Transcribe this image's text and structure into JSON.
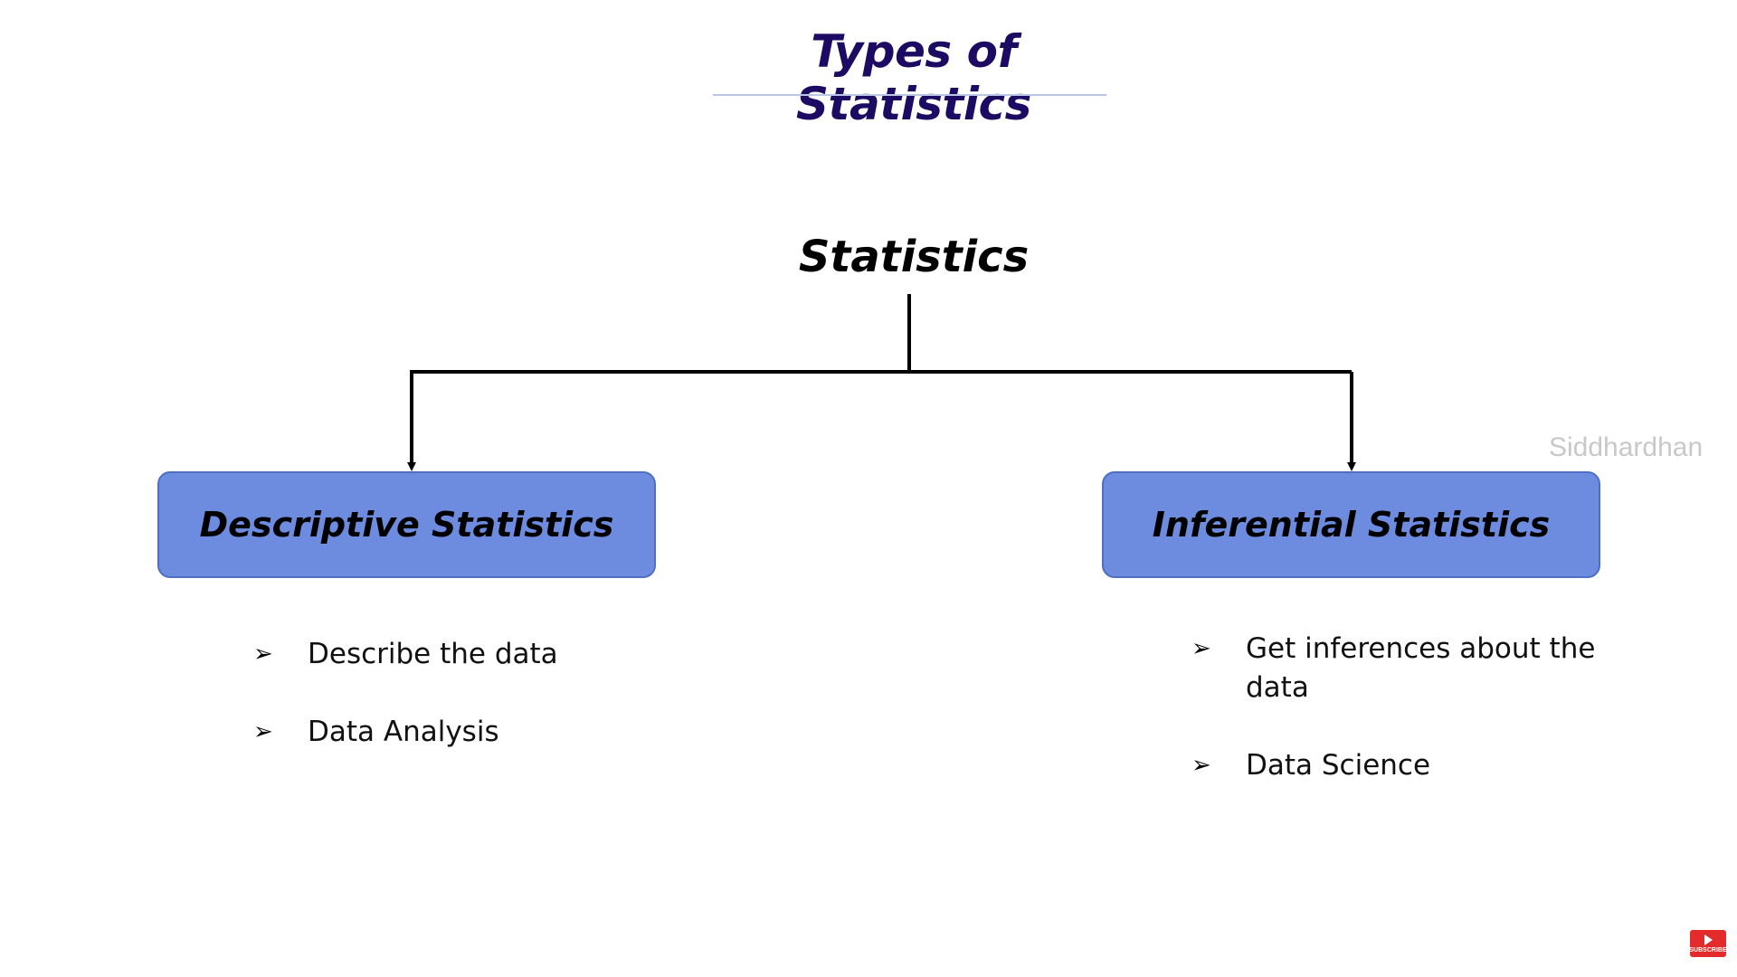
{
  "title": "Types of Statistics",
  "diagram": {
    "root": "Statistics",
    "branches": [
      {
        "label": "Descriptive Statistics",
        "color": "#6d8bdf",
        "points": [
          "Describe the data",
          "Data Analysis"
        ]
      },
      {
        "label": "Inferential Statistics",
        "color": "#6d8bdf",
        "points": [
          "Get inferences about the data",
          "Data Science"
        ]
      }
    ]
  },
  "watermark": "Siddhardhan",
  "subscribe_badge": {
    "text": "SUBSCRIBE",
    "icon": "youtube-play-icon",
    "color": "#e32b2b"
  },
  "bullet_icon": "arrowhead-bullet-icon"
}
